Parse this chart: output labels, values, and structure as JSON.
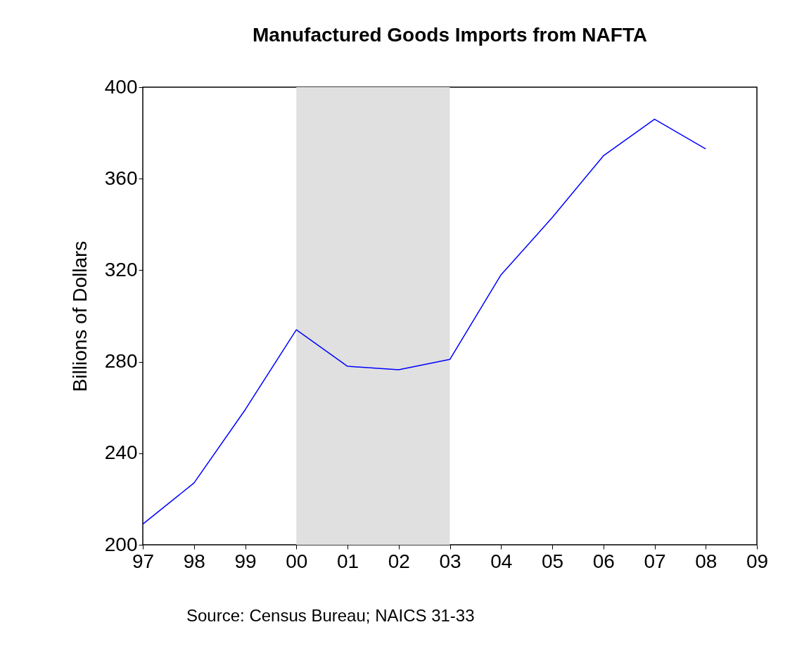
{
  "chart_data": {
    "type": "line",
    "title": "Manufactured Goods Imports from NAFTA",
    "ylabel": "Billions of Dollars",
    "x": [
      1997,
      1998,
      1999,
      2000,
      2001,
      2002,
      2003,
      2004,
      2005,
      2006,
      2007,
      2008
    ],
    "series": [
      {
        "color": "#0000ff",
        "values": [
          209,
          227,
          259,
          294,
          278,
          276.5,
          281,
          318,
          343,
          370,
          386,
          373
        ]
      }
    ],
    "xlim": [
      1997,
      2009
    ],
    "xticks": [
      {
        "value": 1997,
        "label": "97"
      },
      {
        "value": 1998,
        "label": "98"
      },
      {
        "value": 1999,
        "label": "99"
      },
      {
        "value": 2000,
        "label": "00"
      },
      {
        "value": 2001,
        "label": "01"
      },
      {
        "value": 2002,
        "label": "02"
      },
      {
        "value": 2003,
        "label": "03"
      },
      {
        "value": 2004,
        "label": "04"
      },
      {
        "value": 2005,
        "label": "05"
      },
      {
        "value": 2006,
        "label": "06"
      },
      {
        "value": 2007,
        "label": "07"
      },
      {
        "value": 2008,
        "label": "08"
      },
      {
        "value": 2009,
        "label": "09"
      }
    ],
    "ylim": [
      200,
      400
    ],
    "yticks": [
      200,
      240,
      280,
      320,
      360,
      400
    ],
    "bands": [
      {
        "axis": "x",
        "from": 2000,
        "to": 2003,
        "color": "#e0e0e0"
      }
    ],
    "annotations": [
      "Source: Census Bureau; NAICS 31-33"
    ],
    "grid": false
  }
}
